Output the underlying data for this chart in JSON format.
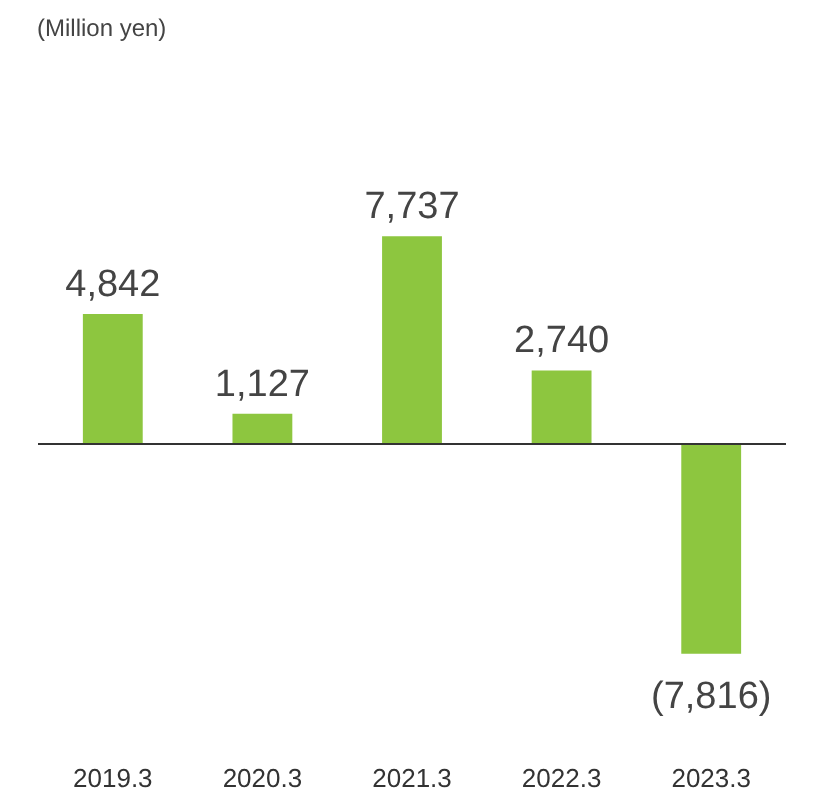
{
  "chart_data": {
    "type": "bar",
    "annotations": [
      "(Million yen)"
    ],
    "categories": [
      "2019.3",
      "2020.3",
      "2021.3",
      "2022.3",
      "2023.3"
    ],
    "values": [
      4842,
      1127,
      7737,
      2740,
      -7816
    ],
    "value_labels": [
      "4,842",
      "1,127",
      "7,737",
      "2,740",
      "(7,816)"
    ],
    "color": "#8dc63f",
    "grid": false
  }
}
